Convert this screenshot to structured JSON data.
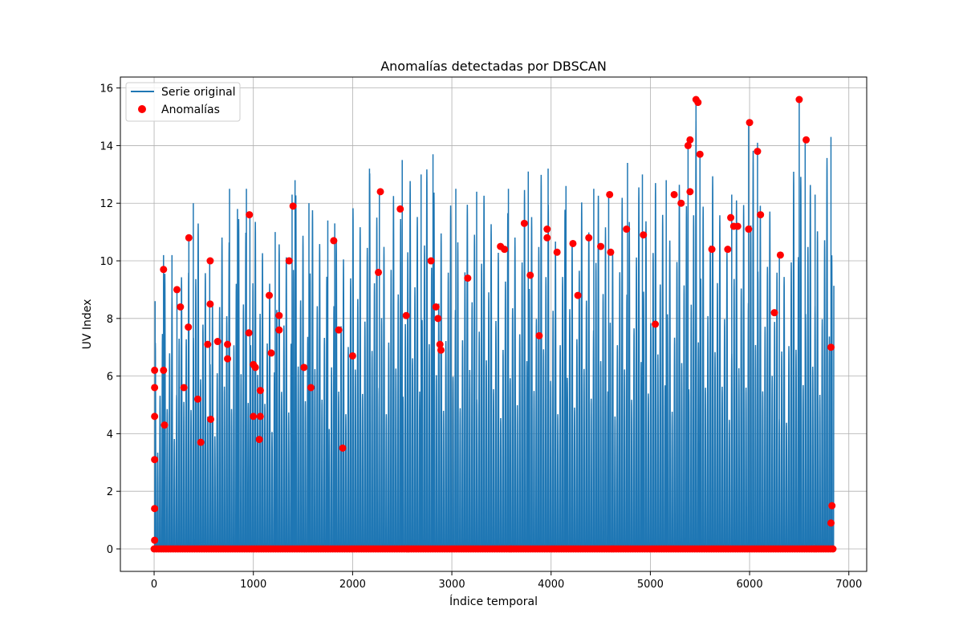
{
  "chart_data": {
    "type": "line+scatter",
    "title": "Anomalías detectadas por DBSCAN",
    "xlabel": "Índice temporal",
    "ylabel": "UV Index",
    "xlim": [
      -340,
      7180
    ],
    "ylim": [
      -0.78,
      16.38
    ],
    "xticks": [
      0,
      1000,
      2000,
      3000,
      4000,
      5000,
      6000,
      7000
    ],
    "yticks": [
      0,
      2,
      4,
      6,
      8,
      10,
      12,
      14,
      16
    ],
    "grid": true,
    "legend": {
      "location": "top-left",
      "entries": [
        "Serie original",
        "Anomalías"
      ]
    },
    "colors": {
      "series": "#1f77b4",
      "anomaly": "#ff0000",
      "grid": "#b0b0b0"
    },
    "series": [
      {
        "name": "Serie original",
        "type": "line",
        "note": "Hourly UV index, 0 at night with daily peaks; approx. 6850 points",
        "n_points": 6850,
        "period": 24,
        "daily_peaks": [
          {
            "x": 10,
            "y": 8.6
          },
          {
            "x": 95,
            "y": 10.2
          },
          {
            "x": 180,
            "y": 10.2
          },
          {
            "x": 230,
            "y": 9.1
          },
          {
            "x": 350,
            "y": 10.9
          },
          {
            "x": 395,
            "y": 12.0
          },
          {
            "x": 560,
            "y": 10.0
          },
          {
            "x": 760,
            "y": 12.5
          },
          {
            "x": 840,
            "y": 11.8
          },
          {
            "x": 930,
            "y": 12.5
          },
          {
            "x": 965,
            "y": 11.6
          },
          {
            "x": 1220,
            "y": 11.0
          },
          {
            "x": 1390,
            "y": 12.3
          },
          {
            "x": 1420,
            "y": 12.8
          },
          {
            "x": 1560,
            "y": 12.0
          },
          {
            "x": 1750,
            "y": 11.4
          },
          {
            "x": 1820,
            "y": 11.3
          },
          {
            "x": 2170,
            "y": 13.2
          },
          {
            "x": 2270,
            "y": 12.5
          },
          {
            "x": 2500,
            "y": 13.5
          },
          {
            "x": 2690,
            "y": 13.0
          },
          {
            "x": 2810,
            "y": 13.7
          },
          {
            "x": 3040,
            "y": 12.5
          },
          {
            "x": 3250,
            "y": 12.4
          },
          {
            "x": 3570,
            "y": 12.5
          },
          {
            "x": 3770,
            "y": 13.1
          },
          {
            "x": 3970,
            "y": 13.2
          },
          {
            "x": 4150,
            "y": 12.6
          },
          {
            "x": 4430,
            "y": 12.5
          },
          {
            "x": 4580,
            "y": 12.3
          },
          {
            "x": 4770,
            "y": 13.4
          },
          {
            "x": 4920,
            "y": 13.0
          },
          {
            "x": 5160,
            "y": 12.8
          },
          {
            "x": 5380,
            "y": 14.1
          },
          {
            "x": 5460,
            "y": 15.5
          },
          {
            "x": 5500,
            "y": 13.7
          },
          {
            "x": 5820,
            "y": 12.3
          },
          {
            "x": 5990,
            "y": 14.8
          },
          {
            "x": 6080,
            "y": 14.1
          },
          {
            "x": 6300,
            "y": 10.2
          },
          {
            "x": 6500,
            "y": 15.6
          },
          {
            "x": 6560,
            "y": 14.2
          },
          {
            "x": 6660,
            "y": 12.3
          },
          {
            "x": 6820,
            "y": 14.3
          }
        ]
      },
      {
        "name": "Anomalías",
        "type": "scatter",
        "note": "Anomalies: most points sit at UV 0; visible highlighted points listed",
        "points": [
          {
            "x": 5,
            "y": 6.2
          },
          {
            "x": 5,
            "y": 5.6
          },
          {
            "x": 5,
            "y": 4.6
          },
          {
            "x": 5,
            "y": 3.1
          },
          {
            "x": 5,
            "y": 1.4
          },
          {
            "x": 5,
            "y": 0.3
          },
          {
            "x": 95,
            "y": 9.7
          },
          {
            "x": 95,
            "y": 6.2
          },
          {
            "x": 105,
            "y": 4.3
          },
          {
            "x": 230,
            "y": 9.0
          },
          {
            "x": 265,
            "y": 8.4
          },
          {
            "x": 300,
            "y": 5.6
          },
          {
            "x": 350,
            "y": 10.8
          },
          {
            "x": 345,
            "y": 7.7
          },
          {
            "x": 440,
            "y": 5.2
          },
          {
            "x": 470,
            "y": 3.7
          },
          {
            "x": 540,
            "y": 7.1
          },
          {
            "x": 565,
            "y": 10.0
          },
          {
            "x": 565,
            "y": 8.5
          },
          {
            "x": 570,
            "y": 4.5
          },
          {
            "x": 640,
            "y": 7.2
          },
          {
            "x": 740,
            "y": 7.1
          },
          {
            "x": 740,
            "y": 6.6
          },
          {
            "x": 960,
            "y": 11.6
          },
          {
            "x": 955,
            "y": 7.5
          },
          {
            "x": 1000,
            "y": 6.4
          },
          {
            "x": 1020,
            "y": 6.3
          },
          {
            "x": 1000,
            "y": 4.6
          },
          {
            "x": 1070,
            "y": 5.5
          },
          {
            "x": 1070,
            "y": 4.6
          },
          {
            "x": 1060,
            "y": 3.8
          },
          {
            "x": 1160,
            "y": 8.8
          },
          {
            "x": 1180,
            "y": 6.8
          },
          {
            "x": 1260,
            "y": 8.1
          },
          {
            "x": 1260,
            "y": 7.6
          },
          {
            "x": 1360,
            "y": 10.0
          },
          {
            "x": 1400,
            "y": 11.9
          },
          {
            "x": 1510,
            "y": 6.3
          },
          {
            "x": 1580,
            "y": 5.6
          },
          {
            "x": 1810,
            "y": 10.7
          },
          {
            "x": 1860,
            "y": 7.6
          },
          {
            "x": 1900,
            "y": 3.5
          },
          {
            "x": 2000,
            "y": 6.7
          },
          {
            "x": 2260,
            "y": 9.6
          },
          {
            "x": 2280,
            "y": 12.4
          },
          {
            "x": 2480,
            "y": 11.8
          },
          {
            "x": 2540,
            "y": 8.1
          },
          {
            "x": 2790,
            "y": 10.0
          },
          {
            "x": 2840,
            "y": 8.4
          },
          {
            "x": 2860,
            "y": 8.0
          },
          {
            "x": 2880,
            "y": 7.1
          },
          {
            "x": 2890,
            "y": 6.9
          },
          {
            "x": 3160,
            "y": 9.4
          },
          {
            "x": 3490,
            "y": 10.5
          },
          {
            "x": 3530,
            "y": 10.4
          },
          {
            "x": 3730,
            "y": 11.3
          },
          {
            "x": 3790,
            "y": 9.5
          },
          {
            "x": 3880,
            "y": 7.4
          },
          {
            "x": 3960,
            "y": 11.1
          },
          {
            "x": 3960,
            "y": 10.8
          },
          {
            "x": 4060,
            "y": 10.3
          },
          {
            "x": 4220,
            "y": 10.6
          },
          {
            "x": 4270,
            "y": 8.8
          },
          {
            "x": 4380,
            "y": 10.8
          },
          {
            "x": 4500,
            "y": 10.5
          },
          {
            "x": 4590,
            "y": 12.3
          },
          {
            "x": 4600,
            "y": 10.3
          },
          {
            "x": 4760,
            "y": 11.1
          },
          {
            "x": 4930,
            "y": 10.9
          },
          {
            "x": 5050,
            "y": 7.8
          },
          {
            "x": 5240,
            "y": 12.3
          },
          {
            "x": 5310,
            "y": 12.0
          },
          {
            "x": 5380,
            "y": 14.0
          },
          {
            "x": 5400,
            "y": 14.2
          },
          {
            "x": 5400,
            "y": 12.4
          },
          {
            "x": 5460,
            "y": 15.6
          },
          {
            "x": 5480,
            "y": 15.5
          },
          {
            "x": 5500,
            "y": 13.7
          },
          {
            "x": 5620,
            "y": 10.4
          },
          {
            "x": 5780,
            "y": 10.4
          },
          {
            "x": 5810,
            "y": 11.5
          },
          {
            "x": 5840,
            "y": 11.2
          },
          {
            "x": 5880,
            "y": 11.2
          },
          {
            "x": 5990,
            "y": 11.1
          },
          {
            "x": 6000,
            "y": 14.8
          },
          {
            "x": 6080,
            "y": 13.8
          },
          {
            "x": 6110,
            "y": 11.6
          },
          {
            "x": 6250,
            "y": 8.2
          },
          {
            "x": 6310,
            "y": 10.2
          },
          {
            "x": 6500,
            "y": 15.6
          },
          {
            "x": 6570,
            "y": 14.2
          },
          {
            "x": 6820,
            "y": 7.0
          },
          {
            "x": 6830,
            "y": 1.5
          },
          {
            "x": 6820,
            "y": 0.9
          }
        ]
      }
    ]
  }
}
